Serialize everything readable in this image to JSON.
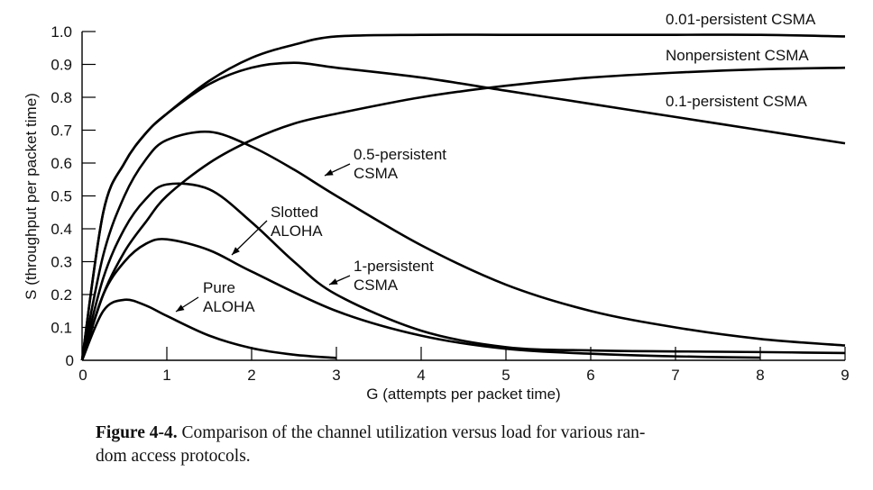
{
  "chart_data": {
    "type": "line",
    "title": "",
    "xlabel": "G (attempts per packet time)",
    "ylabel": "S (throughput per packet time)",
    "xlim": [
      0,
      9
    ],
    "ylim": [
      0,
      1.0
    ],
    "x_ticks": [
      "0",
      "1",
      "2",
      "3",
      "4",
      "5",
      "6",
      "7",
      "8",
      "9"
    ],
    "y_ticks": [
      "0",
      "0.1",
      "0.2",
      "0.3",
      "0.4",
      "0.5",
      "0.6",
      "0.7",
      "0.8",
      "0.9",
      "1.0"
    ],
    "grid": false,
    "series": [
      {
        "name": "Pure ALOHA",
        "label_lines": [
          "Pure",
          "ALOHA"
        ],
        "x": [
          0,
          0.25,
          0.5,
          0.75,
          1,
          1.5,
          2,
          2.5,
          3
        ],
        "y": [
          0,
          0.15,
          0.184,
          0.167,
          0.135,
          0.075,
          0.037,
          0.017,
          0.007
        ]
      },
      {
        "name": "Slotted ALOHA",
        "label_lines": [
          "Slotted",
          "ALOHA"
        ],
        "x": [
          0,
          0.25,
          0.5,
          0.75,
          1,
          1.5,
          2,
          3,
          4,
          5,
          6,
          7,
          8
        ],
        "y": [
          0,
          0.2,
          0.3,
          0.354,
          0.368,
          0.335,
          0.27,
          0.15,
          0.075,
          0.035,
          0.02,
          0.012,
          0.008
        ]
      },
      {
        "name": "1-persistent CSMA",
        "label_lines": [
          "1-persistent",
          "CSMA"
        ],
        "x": [
          0,
          0.25,
          0.5,
          0.75,
          1,
          1.5,
          2,
          2.5,
          3,
          4,
          5,
          6,
          7,
          8,
          9
        ],
        "y": [
          0,
          0.25,
          0.4,
          0.49,
          0.535,
          0.52,
          0.42,
          0.3,
          0.2,
          0.09,
          0.04,
          0.03,
          0.027,
          0.025,
          0.022
        ]
      },
      {
        "name": "0.5-persistent CSMA",
        "label_lines": [
          "0.5-persistent",
          "CSMA"
        ],
        "x": [
          0,
          0.25,
          0.5,
          0.75,
          1,
          1.5,
          2,
          2.5,
          3,
          4,
          5,
          6,
          7,
          8,
          9
        ],
        "y": [
          0,
          0.32,
          0.5,
          0.61,
          0.67,
          0.695,
          0.65,
          0.58,
          0.5,
          0.35,
          0.23,
          0.15,
          0.1,
          0.065,
          0.045
        ]
      },
      {
        "name": "0.1-persistent CSMA",
        "label_lines": [
          "0.1-persistent CSMA"
        ],
        "x": [
          0,
          0.25,
          0.5,
          0.75,
          1,
          1.5,
          2,
          2.5,
          3,
          4,
          5,
          6,
          7,
          8,
          9
        ],
        "y": [
          0,
          0.45,
          0.6,
          0.69,
          0.75,
          0.84,
          0.89,
          0.905,
          0.89,
          0.86,
          0.82,
          0.78,
          0.74,
          0.7,
          0.66
        ]
      },
      {
        "name": "Nonpersistent CSMA",
        "label_lines": [
          "Nonpersistent CSMA"
        ],
        "x": [
          0,
          0.25,
          0.5,
          0.75,
          1,
          1.5,
          2,
          2.5,
          3,
          4,
          5,
          6,
          7,
          8,
          9
        ],
        "y": [
          0,
          0.2,
          0.33,
          0.42,
          0.5,
          0.6,
          0.67,
          0.72,
          0.75,
          0.8,
          0.835,
          0.86,
          0.875,
          0.885,
          0.89
        ]
      },
      {
        "name": "0.01-persistent CSMA",
        "label_lines": [
          "0.01-persistent CSMA"
        ],
        "x": [
          0,
          0.25,
          0.5,
          0.75,
          1,
          1.5,
          2,
          2.5,
          3,
          4,
          5,
          6,
          7,
          8,
          9
        ],
        "y": [
          0,
          0.45,
          0.6,
          0.69,
          0.75,
          0.85,
          0.92,
          0.96,
          0.985,
          0.99,
          0.99,
          0.99,
          0.99,
          0.99,
          0.985
        ]
      }
    ]
  },
  "caption": {
    "figure_label": "Figure 4-4.",
    "text": "Comparison of the channel utilization versus load for various ran-",
    "text_line2": "dom access protocols."
  }
}
